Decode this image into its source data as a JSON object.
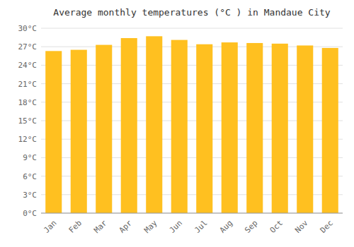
{
  "chart_data": {
    "type": "bar",
    "title": "Average monthly temperatures (°C ) in Mandaue City",
    "categories": [
      "Jan",
      "Feb",
      "Mar",
      "Apr",
      "May",
      "Jun",
      "Jul",
      "Aug",
      "Sep",
      "Oct",
      "Nov",
      "Dec"
    ],
    "values": [
      26.3,
      26.5,
      27.3,
      28.4,
      28.7,
      28.1,
      27.4,
      27.7,
      27.6,
      27.5,
      27.2,
      26.8
    ],
    "color": "#FFC020",
    "ylim": [
      0,
      30
    ],
    "yticks": [
      {
        "value": 0,
        "label": "0°C"
      },
      {
        "value": 3,
        "label": "3°C"
      },
      {
        "value": 6,
        "label": "6°C"
      },
      {
        "value": 9,
        "label": "9°C"
      },
      {
        "value": 12,
        "label": "12°C"
      },
      {
        "value": 15,
        "label": "15°C"
      },
      {
        "value": 18,
        "label": "18°C"
      },
      {
        "value": 21,
        "label": "21°C"
      },
      {
        "value": 24,
        "label": "24°C"
      },
      {
        "value": 27,
        "label": "27°C"
      },
      {
        "value": 30,
        "label": "30°C"
      }
    ],
    "grid": true
  }
}
